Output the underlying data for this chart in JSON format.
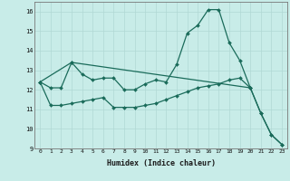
{
  "xlabel": "Humidex (Indice chaleur)",
  "background_color": "#c8ece8",
  "grid_color": "#b0d8d4",
  "line_color": "#1a6b5a",
  "xlim": [
    -0.5,
    23.5
  ],
  "ylim": [
    9,
    16.5
  ],
  "yticks": [
    9,
    10,
    11,
    12,
    13,
    14,
    15,
    16
  ],
  "xticks": [
    0,
    1,
    2,
    3,
    4,
    5,
    6,
    7,
    8,
    9,
    10,
    11,
    12,
    13,
    14,
    15,
    16,
    17,
    18,
    19,
    20,
    21,
    22,
    23
  ],
  "line1_x": [
    0,
    1,
    2,
    3,
    4,
    5,
    6,
    7,
    8,
    9,
    10,
    11,
    12,
    13,
    14,
    15,
    16,
    17,
    18,
    19,
    20,
    21,
    22,
    23
  ],
  "line1_y": [
    12.4,
    12.1,
    12.1,
    13.4,
    12.8,
    12.5,
    12.6,
    12.6,
    12.0,
    12.0,
    12.3,
    12.5,
    12.4,
    13.3,
    14.9,
    15.3,
    16.1,
    16.1,
    14.4,
    13.5,
    12.1,
    null,
    null,
    null
  ],
  "line2_x": [
    0,
    1,
    2,
    3,
    4,
    5,
    6,
    7,
    8,
    9,
    10,
    11,
    12,
    13,
    14,
    15,
    16,
    17,
    18,
    19,
    20,
    21,
    22,
    23
  ],
  "line2_y": [
    12.4,
    11.2,
    11.2,
    11.3,
    11.4,
    11.5,
    11.6,
    11.1,
    11.1,
    11.1,
    11.2,
    11.3,
    11.5,
    11.7,
    11.9,
    12.1,
    12.2,
    12.3,
    12.5,
    12.6,
    12.1,
    10.8,
    9.7,
    9.2
  ],
  "line3_x": [
    0,
    3,
    20,
    21,
    22,
    23
  ],
  "line3_y": [
    12.4,
    13.4,
    12.1,
    10.8,
    9.7,
    9.2
  ]
}
